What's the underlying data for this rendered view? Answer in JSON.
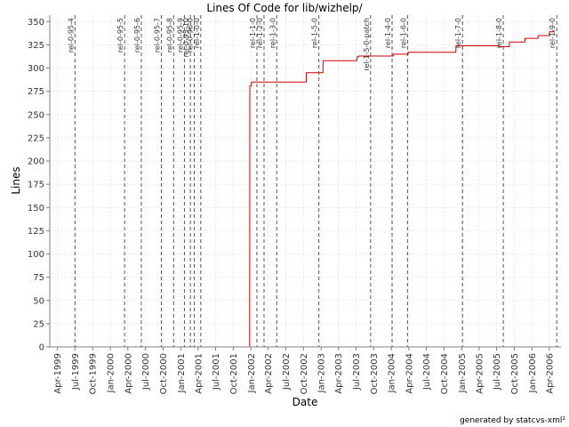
{
  "chart_data": {
    "type": "line",
    "title": "Lines Of Code for lib/wizhelp/",
    "xlabel": "Date",
    "ylabel": "Lines",
    "ylim": [
      0,
      357
    ],
    "xlim": [
      "1999-02-20",
      "2006-06-01"
    ],
    "yticks": [
      0,
      25,
      50,
      75,
      100,
      125,
      150,
      175,
      200,
      225,
      250,
      275,
      300,
      325,
      350
    ],
    "xticks": [
      {
        "date": "1999-04-01",
        "label": "Apr-1999"
      },
      {
        "date": "1999-07-01",
        "label": "Jul-1999"
      },
      {
        "date": "1999-10-01",
        "label": "Oct-1999"
      },
      {
        "date": "2000-01-01",
        "label": "Jan-2000"
      },
      {
        "date": "2000-04-01",
        "label": "Apr-2000"
      },
      {
        "date": "2000-07-01",
        "label": "Jul-2000"
      },
      {
        "date": "2000-10-01",
        "label": "Oct-2000"
      },
      {
        "date": "2001-01-01",
        "label": "Jan-2001"
      },
      {
        "date": "2001-04-01",
        "label": "Apr-2001"
      },
      {
        "date": "2001-07-01",
        "label": "Jul-2001"
      },
      {
        "date": "2001-10-01",
        "label": "Oct-2001"
      },
      {
        "date": "2002-01-01",
        "label": "Jan-2002"
      },
      {
        "date": "2002-04-01",
        "label": "Apr-2002"
      },
      {
        "date": "2002-07-01",
        "label": "Jul-2002"
      },
      {
        "date": "2002-10-01",
        "label": "Oct-2002"
      },
      {
        "date": "2003-01-01",
        "label": "Jan-2003"
      },
      {
        "date": "2003-04-01",
        "label": "Apr-2003"
      },
      {
        "date": "2003-07-01",
        "label": "Jul-2003"
      },
      {
        "date": "2003-10-01",
        "label": "Oct-2003"
      },
      {
        "date": "2004-01-01",
        "label": "Jan-2004"
      },
      {
        "date": "2004-04-01",
        "label": "Apr-2004"
      },
      {
        "date": "2004-07-01",
        "label": "Jul-2004"
      },
      {
        "date": "2004-10-01",
        "label": "Oct-2004"
      },
      {
        "date": "2005-01-01",
        "label": "Jan-2005"
      },
      {
        "date": "2005-04-01",
        "label": "Apr-2005"
      },
      {
        "date": "2005-07-01",
        "label": "Jul-2005"
      },
      {
        "date": "2005-10-01",
        "label": "Oct-2005"
      },
      {
        "date": "2006-01-01",
        "label": "Jan-2006"
      },
      {
        "date": "2006-04-01",
        "label": "Apr-2006"
      }
    ],
    "grid": true,
    "series": [
      {
        "color": "#cc0000",
        "points": [
          [
            "1999-03-01",
            0
          ],
          [
            "2001-12-25",
            0
          ],
          [
            "2001-12-26",
            281
          ],
          [
            "2002-01-03",
            281
          ],
          [
            "2002-01-04",
            285
          ],
          [
            "2002-10-15",
            285
          ],
          [
            "2002-10-16",
            295
          ],
          [
            "2003-01-10",
            295
          ],
          [
            "2003-01-11",
            308
          ],
          [
            "2003-07-05",
            308
          ],
          [
            "2003-07-06",
            312
          ],
          [
            "2003-07-14",
            312
          ],
          [
            "2003-07-15",
            313
          ],
          [
            "2004-01-10",
            313
          ],
          [
            "2004-01-11",
            315
          ],
          [
            "2004-03-28",
            315
          ],
          [
            "2004-03-29",
            317
          ],
          [
            "2004-12-01",
            317
          ],
          [
            "2004-12-02",
            324
          ],
          [
            "2005-07-15",
            324
          ],
          [
            "2005-07-16",
            323
          ],
          [
            "2005-09-05",
            323
          ],
          [
            "2005-09-06",
            328
          ],
          [
            "2005-11-25",
            328
          ],
          [
            "2005-11-26",
            332
          ],
          [
            "2006-02-01",
            332
          ],
          [
            "2006-02-02",
            335
          ],
          [
            "2006-04-01",
            335
          ],
          [
            "2006-04-02",
            339
          ],
          [
            "2006-04-25",
            339
          ],
          [
            "2006-04-26",
            341
          ]
        ]
      }
    ],
    "annotations": [
      {
        "date": "1999-07-01",
        "label": "rel-0-95-4"
      },
      {
        "date": "2000-03-15",
        "label": "rel-0-95-5"
      },
      {
        "date": "2000-06-10",
        "label": "rel-0-95-6"
      },
      {
        "date": "2000-09-22",
        "label": "rel-0-95-7"
      },
      {
        "date": "2000-11-25",
        "label": "rel-0-95-8"
      },
      {
        "date": "2001-01-20",
        "label": "rel-0-95-9"
      },
      {
        "date": "2001-02-20",
        "label": "rel-0-95-10"
      },
      {
        "date": "2001-03-12",
        "label": "rel-0-96-0"
      },
      {
        "date": "2001-04-15",
        "label": "rel-1-0-0"
      },
      {
        "date": "2002-02-01",
        "label": "rel-1-1-0"
      },
      {
        "date": "2002-03-10",
        "label": "rel-1-2-0"
      },
      {
        "date": "2002-05-15",
        "label": "rel-1-3-0"
      },
      {
        "date": "2002-12-20",
        "label": "rel-1-5-0"
      },
      {
        "date": "2003-09-15",
        "label": "rel-1-5-0-patch"
      },
      {
        "date": "2004-01-05",
        "label": "rel-1-4-0"
      },
      {
        "date": "2004-03-25",
        "label": "rel-1-6-0"
      },
      {
        "date": "2005-01-05",
        "label": "rel-1-7-0"
      },
      {
        "date": "2005-08-05",
        "label": "rel-1-8-0"
      },
      {
        "date": "2006-05-10",
        "label": "rel-1-9-0"
      }
    ]
  },
  "footer_note": "generated by statcvs-xml²"
}
